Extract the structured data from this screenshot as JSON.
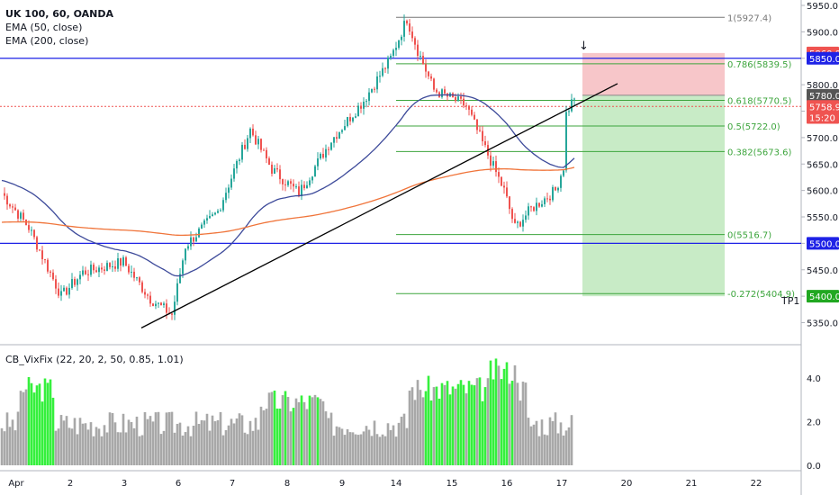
{
  "header": {
    "symbol_line": "UK 100, 60, OANDA",
    "indicators": [
      "EMA (50, close)",
      "EMA (200, close)"
    ]
  },
  "oscillator": {
    "label": "CB_VixFix (22, 20, 2, 50, 0.85, 1.01)"
  },
  "colors": {
    "up": "#26a69a",
    "down": "#ef5350",
    "ema50": "#3d4a9a",
    "ema200": "#f0743a",
    "hline": "#1e22e6",
    "fib": "#3da53d",
    "fib_top": "#777777",
    "target_zone": "#c8ebc6",
    "stop_zone": "#f7c6c9",
    "vix_high": "#35f03d",
    "vix_normal": "#a8a8a8",
    "trend": "#000000",
    "last_price": "#ef5350"
  },
  "chart_data": {
    "type": "candlestick",
    "price_axis": {
      "min": 5300,
      "max": 5960,
      "ticks": [
        "5950.0",
        "5900.0",
        "5850.0",
        "5800.0",
        "5750.0",
        "5700.0",
        "5650.0",
        "5600.0",
        "5550.0",
        "5500.0",
        "5450.0",
        "5400.0",
        "5350.0"
      ]
    },
    "time_axis": {
      "labels": [
        "Apr",
        "2",
        "3",
        "6",
        "7",
        "8",
        "9",
        "14",
        "15",
        "16",
        "17",
        "20",
        "21",
        "22"
      ]
    },
    "price_labels": [
      {
        "text": "5860.0",
        "value": 5860.0,
        "color": "#ef5350"
      },
      {
        "text": "5850.0",
        "value": 5850.0,
        "color": "#1e22e6"
      },
      {
        "text": "5780.0",
        "value": 5780.0,
        "color": "#555555"
      },
      {
        "text": "5758.9",
        "value": 5758.9,
        "color": "#ef5350"
      },
      {
        "text": "15:20",
        "value": 5738,
        "color": "#ef5350"
      },
      {
        "text": "5500.0",
        "value": 5500.0,
        "color": "#1e22e6"
      },
      {
        "text": "5400.0",
        "value": 5400.0,
        "color": "#21a821"
      }
    ],
    "horizontal_lines": [
      {
        "value": 5850,
        "color": "#1e22e6"
      },
      {
        "value": 5500,
        "color": "#1e22e6"
      }
    ],
    "last_price": 5758.9,
    "fib_levels": [
      {
        "label": "1(5927.4)",
        "value": 5927.4
      },
      {
        "label": "0.786(5839.5)",
        "value": 5839.5
      },
      {
        "label": "0.618(5770.5)",
        "value": 5770.5
      },
      {
        "label": "0.5(5722.0)",
        "value": 5722.0
      },
      {
        "label": "0.382(5673.6)",
        "value": 5673.6
      },
      {
        "label": "0(5516.7)",
        "value": 5516.7
      },
      {
        "label": "-0.272(5404.9)",
        "value": 5404.9
      }
    ],
    "position": {
      "entry": 5780,
      "stop": 5860,
      "target": 5400,
      "target_label": "TP1"
    },
    "osc_axis": {
      "min": 0,
      "max": 5.2,
      "ticks": [
        "4.0",
        "2.0",
        "0.0"
      ]
    }
  }
}
